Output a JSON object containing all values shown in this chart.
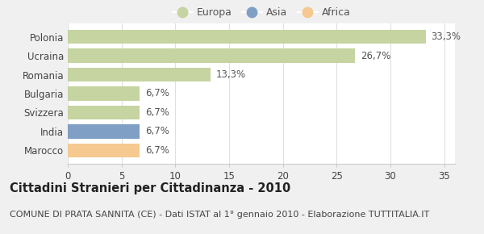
{
  "categories": [
    "Marocco",
    "India",
    "Svizzera",
    "Bulgaria",
    "Romania",
    "Ucraina",
    "Polonia"
  ],
  "values": [
    6.7,
    6.7,
    6.7,
    6.7,
    13.3,
    26.7,
    33.3
  ],
  "labels": [
    "6,7%",
    "6,7%",
    "6,7%",
    "6,7%",
    "13,3%",
    "26,7%",
    "33,3%"
  ],
  "bar_colors": [
    "#f5c990",
    "#7f9fc5",
    "#c5d4a0",
    "#c5d4a0",
    "#c5d4a0",
    "#c5d4a0",
    "#c5d4a0"
  ],
  "legend_items": [
    {
      "label": "Europa",
      "color": "#c5d4a0"
    },
    {
      "label": "Asia",
      "color": "#7f9fc5"
    },
    {
      "label": "Africa",
      "color": "#f5c990"
    }
  ],
  "title": "Cittadini Stranieri per Cittadinanza - 2010",
  "subtitle": "COMUNE DI PRATA SANNITA (CE) - Dati ISTAT al 1° gennaio 2010 - Elaborazione TUTTITALIA.IT",
  "xlim": [
    0,
    36
  ],
  "xticks": [
    0,
    5,
    10,
    15,
    20,
    25,
    30,
    35
  ],
  "background_color": "#f0f0f0",
  "plot_bg_color": "#ffffff",
  "grid_color": "#e0e0e0",
  "bar_height": 0.75,
  "title_fontsize": 10.5,
  "subtitle_fontsize": 8,
  "tick_fontsize": 8.5,
  "label_fontsize": 8.5
}
